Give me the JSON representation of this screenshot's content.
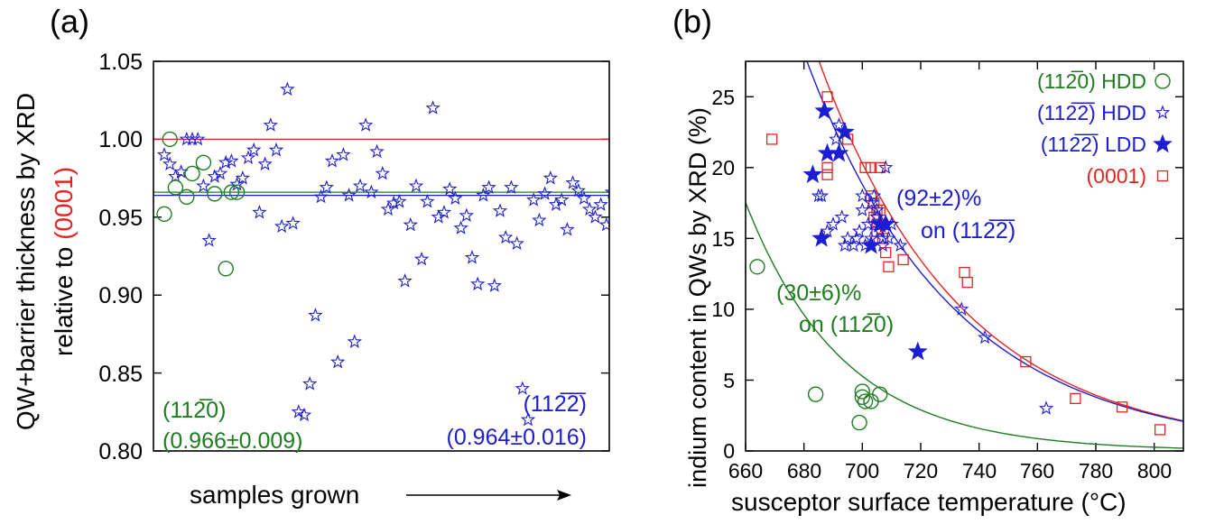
{
  "colors": {
    "red": "#e8231f",
    "green": "#1e7d1e",
    "blue": "#1d1dd2",
    "black": "#000000"
  },
  "chart_data": [
    {
      "panel": "(a)",
      "type": "scatter",
      "ylabel_line1": "QW+barrier thickness by XRD",
      "ylabel_line2": "relative to ",
      "ylabel_ref": "(0001)",
      "xlabel": "samples grown",
      "ylim": [
        0.8,
        1.05
      ],
      "yticks": [
        "0.80",
        "0.85",
        "0.90",
        "0.95",
        "1.00",
        "1.05"
      ],
      "ytick_values": [
        0.8,
        0.85,
        0.9,
        0.95,
        1.0,
        1.05
      ],
      "hlines": [
        {
          "series": "(0001)",
          "value": 1.0,
          "color": "#e8231f"
        },
        {
          "series": "(11-20)",
          "value": 0.966,
          "color": "#1e7d1e"
        },
        {
          "series": "(11-22)",
          "value": 0.964,
          "color": "#1d1dd2"
        }
      ],
      "annotations": {
        "green_l1": "(112̅0)",
        "green_l2": "(0.966±0.009)",
        "blue_l1": "(112̅2̅)",
        "blue_l2": "(0.964±0.016)"
      },
      "series": [
        {
          "name": "(11-20)",
          "marker": "circle",
          "color": "#1e7d1e",
          "x": [
            1,
            2,
            3,
            5,
            6,
            8,
            10,
            12,
            13,
            14
          ],
          "y": [
            0.952,
            1.0,
            0.969,
            0.963,
            0.978,
            0.985,
            0.965,
            0.917,
            0.966,
            0.966
          ]
        },
        {
          "name": "(11-22)",
          "marker": "star",
          "color": "#1d1dd2",
          "x": [
            1,
            2,
            3,
            4,
            5,
            6,
            7,
            8,
            9,
            10,
            11,
            12,
            13,
            14,
            15,
            16,
            17,
            18,
            19,
            20,
            21,
            22,
            23,
            24,
            25,
            26,
            27,
            28,
            29,
            30,
            31,
            32,
            33,
            34,
            35,
            36,
            37,
            38,
            39,
            40,
            41,
            42,
            43,
            44,
            45,
            46,
            47,
            48,
            49,
            50,
            51,
            52,
            53,
            54,
            55,
            56,
            57,
            58,
            59,
            60,
            61,
            62,
            63,
            64,
            65,
            66,
            67,
            68,
            69,
            70,
            71,
            72,
            73,
            74,
            75,
            76,
            77,
            78,
            79,
            80,
            81
          ],
          "y": [
            0.99,
            0.984,
            0.976,
            0.979,
            1.0,
            1.0,
            1.0,
            0.97,
            0.935,
            0.976,
            0.978,
            0.985,
            0.986,
            0.971,
            0.975,
            0.988,
            0.993,
            0.953,
            0.984,
            1.009,
            0.993,
            0.944,
            1.032,
            0.946,
            0.825,
            0.823,
            0.843,
            0.887,
            0.963,
            0.969,
            0.986,
            0.857,
            0.99,
            0.964,
            0.87,
            0.97,
            1.009,
            0.966,
            0.992,
            0.978,
            0.955,
            0.959,
            0.96,
            0.909,
            0.945,
            0.97,
            0.923,
            0.96,
            1.02,
            0.95,
            0.953,
            0.968,
            0.962,
            0.943,
            0.951,
            0.924,
            0.907,
            0.964,
            0.969,
            0.906,
            0.954,
            0.937,
            0.969,
            0.933,
            0.84,
            0.82,
            0.961,
            0.948,
            0.965,
            0.975,
            0.958,
            0.961,
            0.942,
            0.972,
            0.967,
            0.962,
            0.955,
            0.95,
            0.958,
            0.945,
            0.966
          ]
        }
      ]
    },
    {
      "panel": "(b)",
      "type": "scatter",
      "ylabel": "indium content in QWs by XRD  (%)",
      "xlabel": "susceptor surface temperature  (°C)",
      "xlim": [
        660,
        810
      ],
      "ylim": [
        0,
        27.5
      ],
      "xticks": [
        "660",
        "680",
        "700",
        "720",
        "740",
        "760",
        "780",
        "800"
      ],
      "xtick_values": [
        660,
        680,
        700,
        720,
        740,
        760,
        780,
        800
      ],
      "yticks": [
        "0",
        "5",
        "10",
        "15",
        "20",
        "25"
      ],
      "ytick_values": [
        0,
        5,
        10,
        15,
        20,
        25
      ],
      "legend": [
        {
          "label": "(112̅0) HDD",
          "marker": "circle",
          "color": "#1e7d1e"
        },
        {
          "label": "(112̅2̅) HDD",
          "marker": "star",
          "color": "#1d1dd2"
        },
        {
          "label": "(112̅2̅) LDD",
          "marker": "filled-star",
          "color": "#1d1dd2"
        },
        {
          "label": "(0001)",
          "marker": "square",
          "color": "#e8231f"
        }
      ],
      "legend_position": "top-right",
      "annotations": {
        "blue_l1": "(92±2)%",
        "blue_l2": "on (112̅2̅)",
        "green_l1": "(30±6)%",
        "green_l2": "on (112̅0)"
      },
      "fits": [
        {
          "series": "(0001)",
          "color": "#e8231f",
          "A": 27.6,
          "T0": 685,
          "k": 0.0205
        },
        {
          "series": "(11-22)",
          "color": "#1d1dd2",
          "A": 25.4,
          "T0": 685,
          "k": 0.02
        },
        {
          "series": "(11-20)",
          "color": "#1e7d1e",
          "A": 8.28,
          "T0": 685,
          "k": 0.03
        }
      ],
      "series": [
        {
          "name": "(11-20) HDD",
          "marker": "circle",
          "color": "#1e7d1e",
          "x": [
            664,
            684,
            699,
            700,
            700,
            701,
            703,
            706
          ],
          "y": [
            13.0,
            4.0,
            2.0,
            4.2,
            3.8,
            3.5,
            3.5,
            4.0
          ]
        },
        {
          "name": "(11-22) HDD",
          "marker": "star",
          "color": "#1d1dd2",
          "x": [
            685,
            686,
            688,
            690,
            691,
            692,
            693,
            694,
            695,
            697,
            698,
            699,
            700,
            700,
            701,
            702,
            703,
            703,
            704,
            704,
            705,
            705,
            706,
            706,
            707,
            707,
            708,
            709,
            710,
            713,
            734,
            742,
            763
          ],
          "y": [
            18.0,
            18.0,
            15.5,
            16.0,
            22.0,
            23.0,
            16.5,
            14.5,
            15.0,
            14.5,
            15.0,
            15.5,
            17.0,
            18.0,
            14.5,
            16.0,
            15.0,
            17.5,
            16.0,
            18.0,
            17.0,
            16.5,
            16.0,
            15.5,
            14.5,
            15.0,
            20.0,
            15.0,
            16.0,
            14.5,
            10.0,
            8.0,
            3.0
          ]
        },
        {
          "name": "(11-22) LDD",
          "marker": "filled-star",
          "color": "#1d1dd2",
          "x": [
            683,
            686,
            687,
            688,
            692,
            694,
            703,
            706,
            708,
            719
          ],
          "y": [
            19.5,
            15.0,
            24.0,
            21.0,
            21.0,
            22.5,
            14.5,
            16.0,
            16.0,
            7.0
          ]
        },
        {
          "name": "(0001)",
          "marker": "square",
          "color": "#e8231f",
          "x": [
            669,
            688,
            688,
            688,
            695,
            701,
            703,
            703,
            704,
            704,
            705,
            705,
            705,
            706,
            706,
            707,
            707,
            708,
            709,
            714,
            735,
            736,
            756,
            773,
            789,
            802
          ],
          "y": [
            22.0,
            25.0,
            20.0,
            19.5,
            22.0,
            20.0,
            20.0,
            18.0,
            17.5,
            16.5,
            17.0,
            16.0,
            15.5,
            20.0,
            17.0,
            16.0,
            15.0,
            14.0,
            13.0,
            13.5,
            12.6,
            11.9,
            6.3,
            3.7,
            3.1,
            1.5
          ]
        }
      ]
    }
  ]
}
